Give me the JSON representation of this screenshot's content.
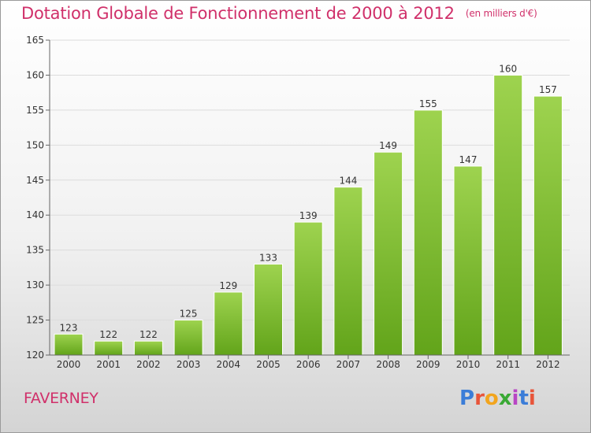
{
  "title": "Dotation Globale de Fonctionnement de 2000 à 2012",
  "title_unit": "(en milliers d'€)",
  "commune": "FAVERNEY",
  "logo": {
    "text": "Proxiti",
    "letter_colors": [
      "#3b7dd8",
      "#e8553a",
      "#f2a51e",
      "#3aa935",
      "#b845c4",
      "#3b7dd8",
      "#e8553a"
    ]
  },
  "colors": {
    "title": "#d0306a",
    "bar_top": "#9ed34f",
    "bar_bottom": "#62a41a",
    "grid": "#dcdcdc",
    "axis": "#666666"
  },
  "chart_data": {
    "type": "bar",
    "title": "Dotation Globale de Fonctionnement de 2000 à 2012",
    "subtitle": "(en milliers d'€)",
    "xlabel": "",
    "ylabel": "",
    "categories": [
      "2000",
      "2001",
      "2002",
      "2003",
      "2004",
      "2005",
      "2006",
      "2007",
      "2008",
      "2009",
      "2010",
      "2011",
      "2012"
    ],
    "values": [
      123,
      122,
      122,
      125,
      129,
      133,
      139,
      144,
      149,
      155,
      147,
      160,
      157
    ],
    "ylim": [
      120,
      165
    ],
    "yticks": [
      120,
      125,
      130,
      135,
      140,
      145,
      150,
      155,
      160,
      165
    ],
    "grid": true,
    "legend": "none"
  }
}
